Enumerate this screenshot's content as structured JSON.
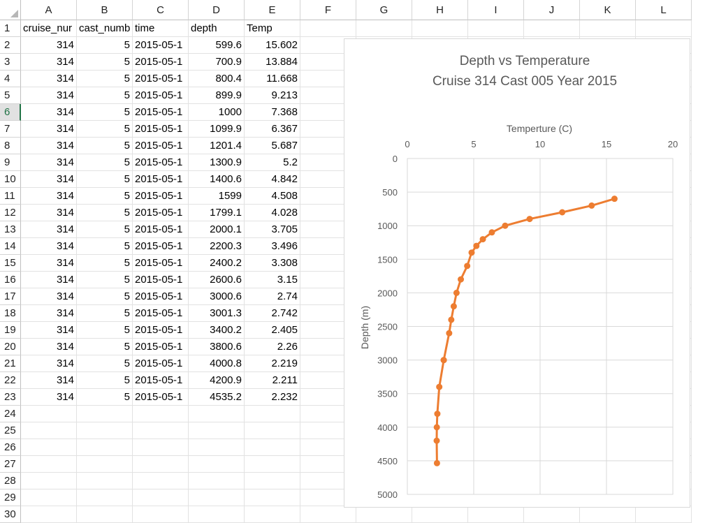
{
  "columns": [
    "A",
    "B",
    "C",
    "D",
    "E",
    "F",
    "G",
    "H",
    "I",
    "J",
    "K",
    "L"
  ],
  "rows": [
    "1",
    "2",
    "3",
    "4",
    "5",
    "6",
    "7",
    "8",
    "9",
    "10",
    "11",
    "12",
    "13",
    "14",
    "15",
    "16",
    "17",
    "18",
    "19",
    "20",
    "21",
    "22",
    "23",
    "24",
    "25",
    "26",
    "27",
    "28",
    "29",
    "30"
  ],
  "active_row": "6",
  "headers": [
    "cruise_nur",
    "cast_numb",
    "time",
    "depth",
    "Temp"
  ],
  "data_rows": [
    [
      "314",
      "5",
      "2015-05-1",
      "599.6",
      "15.602"
    ],
    [
      "314",
      "5",
      "2015-05-1",
      "700.9",
      "13.884"
    ],
    [
      "314",
      "5",
      "2015-05-1",
      "800.4",
      "11.668"
    ],
    [
      "314",
      "5",
      "2015-05-1",
      "899.9",
      "9.213"
    ],
    [
      "314",
      "5",
      "2015-05-1",
      "1000",
      "7.368"
    ],
    [
      "314",
      "5",
      "2015-05-1",
      "1099.9",
      "6.367"
    ],
    [
      "314",
      "5",
      "2015-05-1",
      "1201.4",
      "5.687"
    ],
    [
      "314",
      "5",
      "2015-05-1",
      "1300.9",
      "5.2"
    ],
    [
      "314",
      "5",
      "2015-05-1",
      "1400.6",
      "4.842"
    ],
    [
      "314",
      "5",
      "2015-05-1",
      "1599",
      "4.508"
    ],
    [
      "314",
      "5",
      "2015-05-1",
      "1799.1",
      "4.028"
    ],
    [
      "314",
      "5",
      "2015-05-1",
      "2000.1",
      "3.705"
    ],
    [
      "314",
      "5",
      "2015-05-1",
      "2200.3",
      "3.496"
    ],
    [
      "314",
      "5",
      "2015-05-1",
      "2400.2",
      "3.308"
    ],
    [
      "314",
      "5",
      "2015-05-1",
      "2600.6",
      "3.15"
    ],
    [
      "314",
      "5",
      "2015-05-1",
      "3000.6",
      "2.74"
    ],
    [
      "314",
      "5",
      "2015-05-1",
      "3001.3",
      "2.742"
    ],
    [
      "314",
      "5",
      "2015-05-1",
      "3400.2",
      "2.405"
    ],
    [
      "314",
      "5",
      "2015-05-1",
      "3800.6",
      "2.26"
    ],
    [
      "314",
      "5",
      "2015-05-1",
      "4000.8",
      "2.219"
    ],
    [
      "314",
      "5",
      "2015-05-1",
      "4200.9",
      "2.211"
    ],
    [
      "314",
      "5",
      "2015-05-1",
      "4535.2",
      "2.232"
    ]
  ],
  "chart_data": {
    "type": "scatter",
    "title": "Depth vs Temperature",
    "subtitle": "Cruise 314 Cast 005 Year 2015",
    "xlabel": "Temperture (C)",
    "ylabel": "Depth (m)",
    "xlim": [
      0,
      20
    ],
    "ylim": [
      0,
      5000
    ],
    "y_inverted": true,
    "x_axis_position": "top",
    "x_ticks": [
      "0",
      "5",
      "10",
      "15",
      "20"
    ],
    "y_ticks": [
      "0",
      "500",
      "1000",
      "1500",
      "2000",
      "2500",
      "3000",
      "3500",
      "4000",
      "4500",
      "5000"
    ],
    "grid": true,
    "series_color": "#ed7d31",
    "series": [
      {
        "x": [
          15.602,
          13.884,
          11.668,
          9.213,
          7.368,
          6.367,
          5.687,
          5.2,
          4.842,
          4.508,
          4.028,
          3.705,
          3.496,
          3.308,
          3.15,
          2.74,
          2.742,
          2.405,
          2.26,
          2.219,
          2.211,
          2.232
        ],
        "y": [
          599.6,
          700.9,
          800.4,
          899.9,
          1000,
          1099.9,
          1201.4,
          1300.9,
          1400.6,
          1599,
          1799.1,
          2000.1,
          2200.3,
          2400.2,
          2600.6,
          3000.6,
          3001.3,
          3400.2,
          3800.6,
          4000.8,
          4200.9,
          4535.2
        ]
      }
    ]
  }
}
